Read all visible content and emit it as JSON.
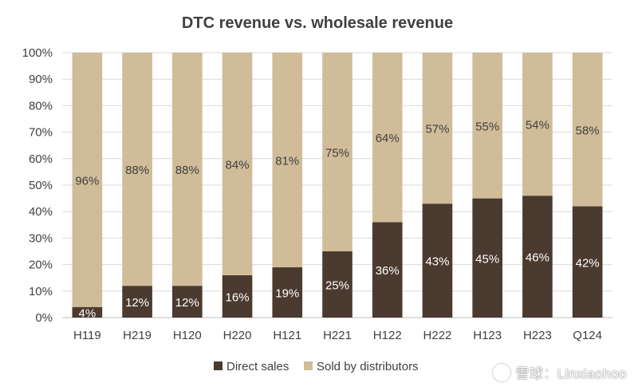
{
  "chart_data": {
    "type": "bar",
    "stacked": true,
    "title": "DTC revenue vs. wholesale revenue",
    "categories": [
      "H119",
      "H219",
      "H120",
      "H220",
      "H121",
      "H221",
      "H122",
      "H222",
      "H123",
      "H223",
      "Q124"
    ],
    "series": [
      {
        "name": "Direct sales",
        "color": "#4b3a2f",
        "values": [
          4,
          12,
          12,
          16,
          19,
          25,
          36,
          43,
          45,
          46,
          42
        ],
        "labels": [
          "4%",
          "12%",
          "12%",
          "16%",
          "19%",
          "25%",
          "36%",
          "43%",
          "45%",
          "46%",
          "42%"
        ]
      },
      {
        "name": "Sold by distributors",
        "color": "#d0bc99",
        "values": [
          96,
          88,
          88,
          84,
          81,
          75,
          64,
          57,
          55,
          54,
          58
        ],
        "labels": [
          "96%",
          "88%",
          "88%",
          "84%",
          "81%",
          "75%",
          "64%",
          "57%",
          "55%",
          "54%",
          "58%"
        ]
      }
    ],
    "ylim": [
      0,
      100
    ],
    "yticks": [
      0,
      10,
      20,
      30,
      40,
      50,
      60,
      70,
      80,
      90,
      100
    ],
    "ytick_labels": [
      "0%",
      "10%",
      "20%",
      "30%",
      "40%",
      "50%",
      "60%",
      "70%",
      "80%",
      "90%",
      "100%"
    ],
    "grid": true,
    "legend_position": "bottom"
  },
  "watermark": "雪球：Linxiaohoo"
}
